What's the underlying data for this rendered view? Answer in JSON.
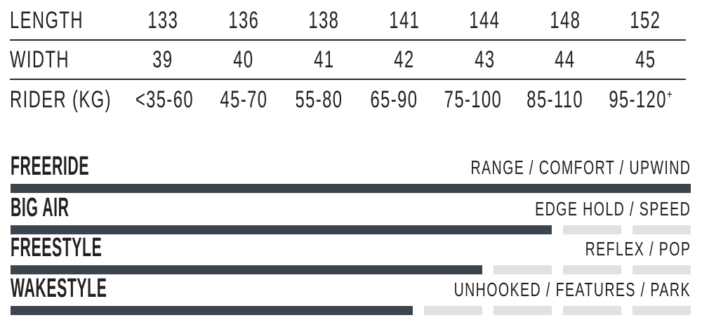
{
  "page": {
    "background": "#ffffff",
    "text_color": "#242021",
    "rule_color": "#2d292a"
  },
  "spec_table": {
    "rows": [
      {
        "label": "LENGTH",
        "values": [
          "133",
          "136",
          "138",
          "141",
          "144",
          "148",
          "152"
        ]
      },
      {
        "label": "WIDTH",
        "values": [
          "39",
          "40",
          "41",
          "42",
          "43",
          "44",
          "45"
        ]
      },
      {
        "label": "RIDER (KG)",
        "values": [
          "<35-60",
          "45-70",
          "55-80",
          "65-90",
          "75-100",
          "85-110",
          "95-120+"
        ]
      }
    ]
  },
  "ratings": {
    "max": 10,
    "filled_color": "#3c444e",
    "empty_color": "#e2e1df",
    "items": [
      {
        "label": "FREERIDE",
        "descriptor": "RANGE / COMFORT / UPWIND",
        "value": 10
      },
      {
        "label": "BIG AIR",
        "descriptor": "EDGE HOLD / SPEED",
        "value": 8
      },
      {
        "label": "FREESTYLE",
        "descriptor": "REFLEX / POP",
        "value": 7
      },
      {
        "label": "WAKESTYLE",
        "descriptor": "UNHOOKED / FEATURES / PARK",
        "value": 6
      }
    ]
  },
  "chart_data": [
    {
      "type": "table",
      "rows": [
        [
          "LENGTH",
          "133",
          "136",
          "138",
          "141",
          "144",
          "148",
          "152"
        ],
        [
          "WIDTH",
          "39",
          "40",
          "41",
          "42",
          "43",
          "44",
          "45"
        ],
        [
          "RIDER (KG)",
          "<35-60",
          "45-70",
          "55-80",
          "65-90",
          "75-100",
          "85-110",
          "95-120+"
        ]
      ]
    },
    {
      "type": "bar",
      "orientation": "horizontal",
      "categories": [
        "FREERIDE",
        "BIG AIR",
        "FREESTYLE",
        "WAKESTYLE"
      ],
      "values": [
        10,
        8,
        7,
        6
      ],
      "ylim": [
        0,
        10
      ],
      "annotations": [
        "RANGE / COMFORT / UPWIND",
        "EDGE HOLD / SPEED",
        "REFLEX / POP",
        "UNHOOKED / FEATURES / PARK"
      ],
      "legend": false,
      "grid": false
    }
  ]
}
